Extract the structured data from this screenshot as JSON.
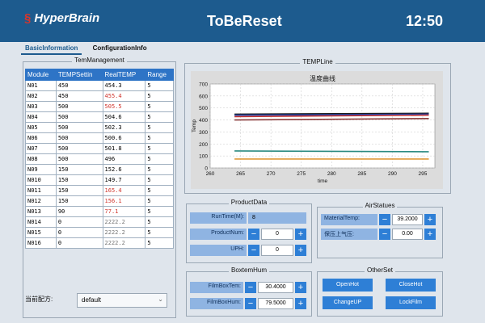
{
  "header": {
    "brand": "HyperBrain",
    "title": "ToBeReset",
    "time": "12:50"
  },
  "tabs": [
    {
      "label": "BasicInformation"
    },
    {
      "label": "ConfigurationInfo"
    }
  ],
  "temp_management": {
    "title": "TemManagement",
    "columns": [
      "Module",
      "TEMPSettin",
      "RealTEMP",
      "Range"
    ],
    "rows": [
      {
        "module": "N01",
        "set": "450",
        "real": "454.3",
        "range": "5"
      },
      {
        "module": "N02",
        "set": "450",
        "real": "455.4",
        "range": "5"
      },
      {
        "module": "N03",
        "set": "500",
        "real": "505.5",
        "range": "5"
      },
      {
        "module": "N04",
        "set": "500",
        "real": "504.6",
        "range": "5"
      },
      {
        "module": "N05",
        "set": "500",
        "real": "502.3",
        "range": "5"
      },
      {
        "module": "N06",
        "set": "500",
        "real": "500.6",
        "range": "5"
      },
      {
        "module": "N07",
        "set": "500",
        "real": "501.8",
        "range": "5"
      },
      {
        "module": "N08",
        "set": "500",
        "real": "496",
        "range": "5"
      },
      {
        "module": "N09",
        "set": "150",
        "real": "152.6",
        "range": "5"
      },
      {
        "module": "N010",
        "set": "150",
        "real": "149.7",
        "range": "5"
      },
      {
        "module": "N011",
        "set": "150",
        "real": "165.4",
        "range": "5"
      },
      {
        "module": "N012",
        "set": "150",
        "real": "156.1",
        "range": "5"
      },
      {
        "module": "N013",
        "set": "90",
        "real": "77.1",
        "range": "5"
      },
      {
        "module": "N014",
        "set": "0",
        "real": "2222.2",
        "range": "5"
      },
      {
        "module": "N015",
        "set": "0",
        "real": "2222.2",
        "range": "5"
      },
      {
        "module": "N016",
        "set": "0",
        "real": "2222.2",
        "range": "5"
      }
    ],
    "recipe_label": "当前配方:",
    "recipe_value": "default",
    "colors": {
      "header": "#2e74c6",
      "alarm": "#d0342c"
    }
  },
  "temp_line": {
    "group_title": "TEMPLine",
    "chart_data": {
      "type": "line",
      "title": "温度曲线",
      "xlabel": "time",
      "ylabel": "Temp",
      "xlim": [
        260,
        297
      ],
      "ylim": [
        0,
        700
      ],
      "x_ticks": [
        260,
        265,
        270,
        275,
        280,
        285,
        290,
        295
      ],
      "y_ticks": [
        0,
        100,
        200,
        300,
        400,
        500,
        600,
        700
      ],
      "grid": true,
      "x": [
        264,
        296
      ],
      "series": [
        {
          "color": "#1a1a1a",
          "values": [
            448,
            456
          ]
        },
        {
          "color": "#2244aa",
          "values": [
            440,
            448
          ]
        },
        {
          "color": "#c03030",
          "values": [
            428,
            440
          ]
        },
        {
          "color": "#8a3a3a",
          "values": [
            400,
            412
          ]
        },
        {
          "color": "#2a8a80",
          "values": [
            142,
            135
          ]
        },
        {
          "color": "#e09a3a",
          "values": [
            75,
            75
          ]
        }
      ]
    }
  },
  "product_data": {
    "title": "ProductData",
    "runtime_label": "RunTime(M):",
    "runtime_value": "8",
    "num_label": "ProductNum:",
    "num_value": "0",
    "uph_label": "UPH:",
    "uph_value": "0"
  },
  "air_status": {
    "title": "AirStatues",
    "material_label": "MaterialTemp:",
    "material_value": "39.2000",
    "pressure_label": "保压上气压:",
    "pressure_value": "0.00"
  },
  "boxtem": {
    "title": "BoxtemHum",
    "tem_label": "FilmBoxTem:",
    "tem_value": "30.4000",
    "hum_label": "FilmBoxHum:",
    "hum_value": "79.5000"
  },
  "other_set": {
    "title": "OtherSet",
    "open_hot": "OpenHot",
    "close_hot": "CloseHot",
    "change_up": "ChangeUP",
    "lock_film": "LockFilm"
  },
  "icons": {
    "plus": "+",
    "minus": "−",
    "dropdown": "chevron-down-icon"
  }
}
